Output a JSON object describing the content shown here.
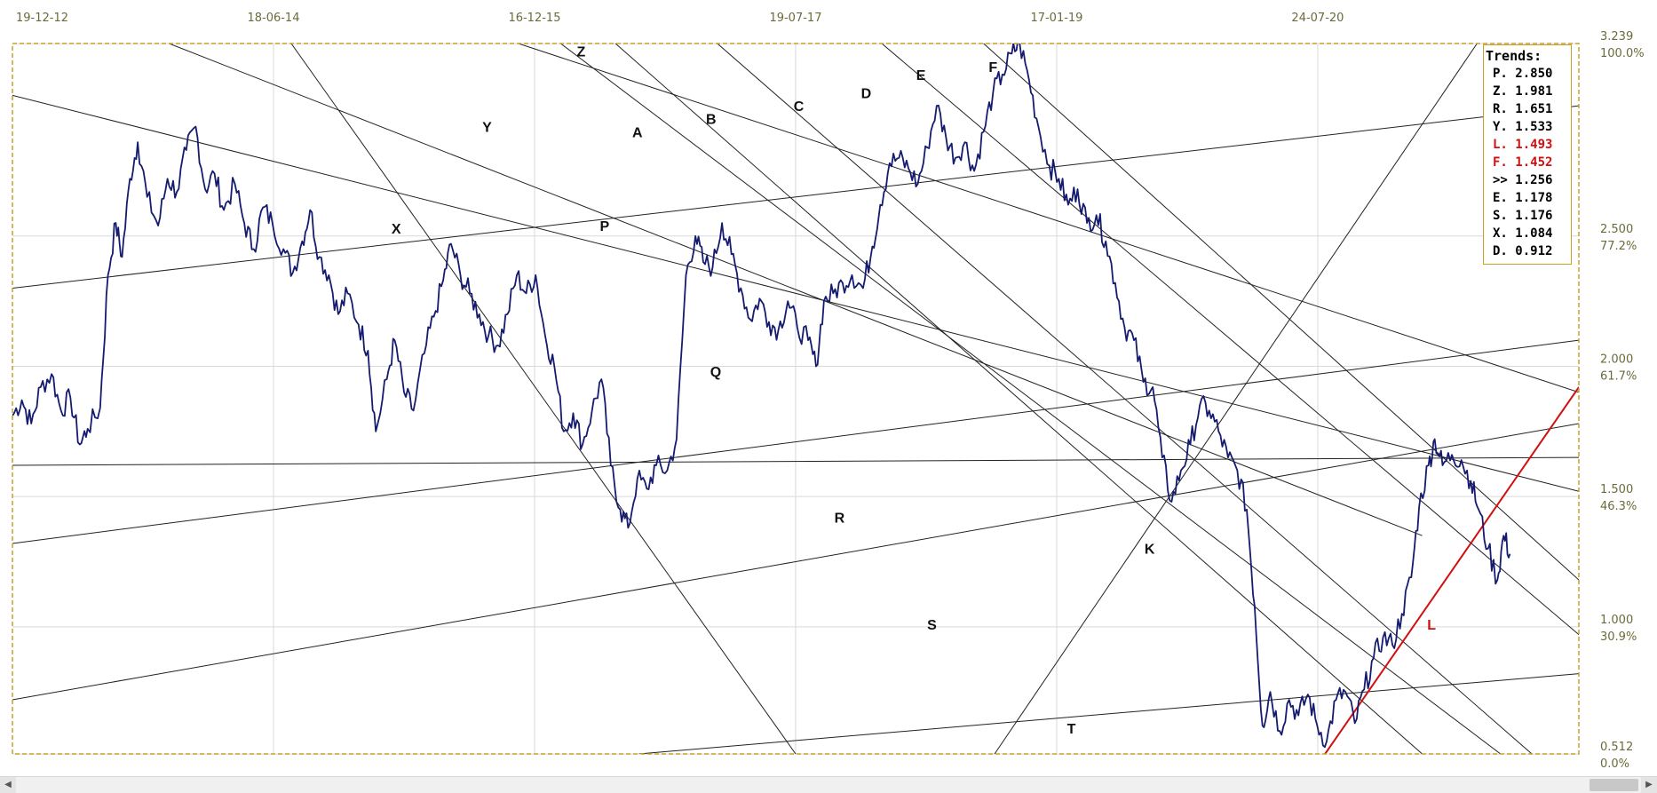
{
  "chart_data": {
    "type": "line",
    "x_ticks": [
      "19-12-12",
      "18-06-14",
      "16-12-15",
      "19-07-17",
      "17-01-19",
      "24-07-20"
    ],
    "y_ticks": [
      {
        "value": 3.239,
        "label": "3.239",
        "pct": "100.0%"
      },
      {
        "value": 2.5,
        "label": "2.500",
        "pct": "77.2%"
      },
      {
        "value": 2.0,
        "label": "2.000",
        "pct": "61.7%"
      },
      {
        "value": 1.5,
        "label": "1.500",
        "pct": "46.3%"
      },
      {
        "value": 1.0,
        "label": "1.000",
        "pct": "30.9%"
      },
      {
        "value": 0.512,
        "label": "0.512",
        "pct": "0.0%"
      }
    ],
    "ylim": [
      0.512,
      3.239
    ],
    "xlim": [
      0,
      100
    ],
    "grid": true,
    "series": [
      {
        "values": [
          [
            0.0,
            1.81
          ],
          [
            0.6,
            1.87
          ],
          [
            1.2,
            1.78
          ],
          [
            1.8,
            1.92
          ],
          [
            2.5,
            1.97
          ],
          [
            3.1,
            1.83
          ],
          [
            3.7,
            1.88
          ],
          [
            4.3,
            1.7
          ],
          [
            4.8,
            1.76
          ],
          [
            5.6,
            1.84
          ],
          [
            6.1,
            2.35
          ],
          [
            6.6,
            2.55
          ],
          [
            7.0,
            2.42
          ],
          [
            7.5,
            2.72
          ],
          [
            8.0,
            2.86
          ],
          [
            8.6,
            2.65
          ],
          [
            9.3,
            2.54
          ],
          [
            9.9,
            2.72
          ],
          [
            10.5,
            2.67
          ],
          [
            11.1,
            2.83
          ],
          [
            11.7,
            2.92
          ],
          [
            12.3,
            2.68
          ],
          [
            12.9,
            2.74
          ],
          [
            13.5,
            2.6
          ],
          [
            14.2,
            2.7
          ],
          [
            14.8,
            2.55
          ],
          [
            15.4,
            2.45
          ],
          [
            16.0,
            2.61
          ],
          [
            16.6,
            2.55
          ],
          [
            17.3,
            2.45
          ],
          [
            17.9,
            2.36
          ],
          [
            18.5,
            2.48
          ],
          [
            19.0,
            2.6
          ],
          [
            19.6,
            2.42
          ],
          [
            20.2,
            2.35
          ],
          [
            20.8,
            2.2
          ],
          [
            21.4,
            2.28
          ],
          [
            22.1,
            2.16
          ],
          [
            22.7,
            2.06
          ],
          [
            23.2,
            1.75
          ],
          [
            23.9,
            1.95
          ],
          [
            24.4,
            2.1
          ],
          [
            25.0,
            1.9
          ],
          [
            25.6,
            1.83
          ],
          [
            26.3,
            2.05
          ],
          [
            26.9,
            2.19
          ],
          [
            27.5,
            2.33
          ],
          [
            28.0,
            2.47
          ],
          [
            28.6,
            2.35
          ],
          [
            29.2,
            2.28
          ],
          [
            29.8,
            2.2
          ],
          [
            30.4,
            2.12
          ],
          [
            31.0,
            2.08
          ],
          [
            31.6,
            2.2
          ],
          [
            32.2,
            2.35
          ],
          [
            32.8,
            2.28
          ],
          [
            33.4,
            2.35
          ],
          [
            34.0,
            2.12
          ],
          [
            34.6,
            2.0
          ],
          [
            35.2,
            1.75
          ],
          [
            35.8,
            1.82
          ],
          [
            36.4,
            1.7
          ],
          [
            37.0,
            1.83
          ],
          [
            37.6,
            1.95
          ],
          [
            38.2,
            1.62
          ],
          [
            38.8,
            1.45
          ],
          [
            39.3,
            1.38
          ],
          [
            39.9,
            1.57
          ],
          [
            40.5,
            1.53
          ],
          [
            41.1,
            1.62
          ],
          [
            41.8,
            1.6
          ],
          [
            42.4,
            1.72
          ],
          [
            43.0,
            2.35
          ],
          [
            43.6,
            2.5
          ],
          [
            44.1,
            2.4
          ],
          [
            44.7,
            2.38
          ],
          [
            45.3,
            2.55
          ],
          [
            45.9,
            2.43
          ],
          [
            46.5,
            2.3
          ],
          [
            47.1,
            2.18
          ],
          [
            47.7,
            2.26
          ],
          [
            48.3,
            2.17
          ],
          [
            48.9,
            2.14
          ],
          [
            49.5,
            2.25
          ],
          [
            50.1,
            2.15
          ],
          [
            50.8,
            2.1
          ],
          [
            51.3,
            2.0
          ],
          [
            51.8,
            2.25
          ],
          [
            52.4,
            2.28
          ],
          [
            53.0,
            2.32
          ],
          [
            53.6,
            2.35
          ],
          [
            54.3,
            2.3
          ],
          [
            54.9,
            2.46
          ],
          [
            55.4,
            2.62
          ],
          [
            56.0,
            2.78
          ],
          [
            56.6,
            2.8
          ],
          [
            57.2,
            2.76
          ],
          [
            57.8,
            2.7
          ],
          [
            58.4,
            2.84
          ],
          [
            59.0,
            3.0
          ],
          [
            59.6,
            2.88
          ],
          [
            60.2,
            2.8
          ],
          [
            60.8,
            2.86
          ],
          [
            61.4,
            2.75
          ],
          [
            62.0,
            2.9
          ],
          [
            62.6,
            3.05
          ],
          [
            63.2,
            3.12
          ],
          [
            63.8,
            3.2
          ],
          [
            64.3,
            3.24
          ],
          [
            64.9,
            3.1
          ],
          [
            65.5,
            2.92
          ],
          [
            66.2,
            2.77
          ],
          [
            66.8,
            2.72
          ],
          [
            67.4,
            2.62
          ],
          [
            68.0,
            2.68
          ],
          [
            68.6,
            2.55
          ],
          [
            69.2,
            2.58
          ],
          [
            69.8,
            2.48
          ],
          [
            70.4,
            2.32
          ],
          [
            71.0,
            2.15
          ],
          [
            71.6,
            2.1
          ],
          [
            72.2,
            1.94
          ],
          [
            72.8,
            1.92
          ],
          [
            73.4,
            1.65
          ],
          [
            74.0,
            1.48
          ],
          [
            74.6,
            1.6
          ],
          [
            75.2,
            1.7
          ],
          [
            75.8,
            1.85
          ],
          [
            76.4,
            1.83
          ],
          [
            77.0,
            1.75
          ],
          [
            77.6,
            1.65
          ],
          [
            78.2,
            1.6
          ],
          [
            78.8,
            1.45
          ],
          [
            79.3,
            1.08
          ],
          [
            79.8,
            0.62
          ],
          [
            80.3,
            0.75
          ],
          [
            80.9,
            0.6
          ],
          [
            81.5,
            0.72
          ],
          [
            82.1,
            0.66
          ],
          [
            82.7,
            0.74
          ],
          [
            83.3,
            0.62
          ],
          [
            83.9,
            0.56
          ],
          [
            84.5,
            0.72
          ],
          [
            85.1,
            0.75
          ],
          [
            85.7,
            0.63
          ],
          [
            86.3,
            0.76
          ],
          [
            86.9,
            0.88
          ],
          [
            87.5,
            0.96
          ],
          [
            88.1,
            0.93
          ],
          [
            88.7,
            1.05
          ],
          [
            89.3,
            1.19
          ],
          [
            89.8,
            1.46
          ],
          [
            90.4,
            1.62
          ],
          [
            90.8,
            1.72
          ],
          [
            91.3,
            1.62
          ],
          [
            91.9,
            1.66
          ],
          [
            92.5,
            1.64
          ],
          [
            93.1,
            1.56
          ],
          [
            93.6,
            1.45
          ],
          [
            94.2,
            1.3
          ],
          [
            94.8,
            1.18
          ],
          [
            95.2,
            1.35
          ],
          [
            95.6,
            1.28
          ]
        ]
      }
    ],
    "trend_lines": [
      {
        "name": "Z",
        "from": [
          32.3,
          3.239
        ],
        "to": [
          100.0,
          1.9
        ]
      },
      {
        "name": "Y",
        "from": [
          0.0,
          3.04
        ],
        "to": [
          100.0,
          1.52
        ]
      },
      {
        "name": "X",
        "from": [
          0.0,
          2.3
        ],
        "to": [
          100.0,
          3.0
        ]
      },
      {
        "name": "P",
        "from": [
          10.0,
          3.239
        ],
        "to": [
          90.0,
          1.35
        ]
      },
      {
        "name": "Q",
        "from": [
          0.0,
          1.32
        ],
        "to": [
          100.0,
          2.1
        ]
      },
      {
        "name": "R",
        "from": [
          0.0,
          1.62
        ],
        "to": [
          100.0,
          1.65
        ]
      },
      {
        "name": "S",
        "from": [
          0.0,
          0.72
        ],
        "to": [
          100.0,
          1.78
        ]
      },
      {
        "name": "T",
        "from": [
          40.0,
          0.512
        ],
        "to": [
          100.0,
          0.82
        ]
      },
      {
        "name": "A",
        "from": [
          17.8,
          3.239
        ],
        "to": [
          50.0,
          0.512
        ]
      },
      {
        "name": "B",
        "from": [
          35.0,
          3.239
        ],
        "to": [
          95.0,
          0.512
        ]
      },
      {
        "name": "C",
        "from": [
          38.5,
          3.239
        ],
        "to": [
          90.0,
          0.512
        ]
      },
      {
        "name": "D",
        "from": [
          45.0,
          3.239
        ],
        "to": [
          97.0,
          0.512
        ]
      },
      {
        "name": "E",
        "from": [
          55.5,
          3.239
        ],
        "to": [
          100.0,
          0.97
        ]
      },
      {
        "name": "F",
        "from": [
          62.0,
          3.239
        ],
        "to": [
          100.0,
          1.18
        ]
      },
      {
        "name": "K",
        "from": [
          62.7,
          0.512
        ],
        "to": [
          93.5,
          3.239
        ]
      },
      {
        "name": "L",
        "from": [
          83.8,
          0.512
        ],
        "to": [
          100.0,
          1.92
        ],
        "color": "#d01010"
      }
    ],
    "trend_labels": [
      {
        "text": "Z",
        "x": 36.3,
        "y": 3.19
      },
      {
        "text": "Y",
        "x": 30.3,
        "y": 2.9
      },
      {
        "text": "X",
        "x": 24.5,
        "y": 2.51
      },
      {
        "text": "P",
        "x": 37.8,
        "y": 2.52
      },
      {
        "text": "A",
        "x": 39.9,
        "y": 2.88
      },
      {
        "text": "B",
        "x": 44.6,
        "y": 2.93
      },
      {
        "text": "C",
        "x": 50.2,
        "y": 2.98
      },
      {
        "text": "D",
        "x": 54.5,
        "y": 3.03
      },
      {
        "text": "E",
        "x": 58.0,
        "y": 3.1
      },
      {
        "text": "F",
        "x": 62.6,
        "y": 3.13
      },
      {
        "text": "Q",
        "x": 44.9,
        "y": 1.96
      },
      {
        "text": "R",
        "x": 52.8,
        "y": 1.4
      },
      {
        "text": "K",
        "x": 72.6,
        "y": 1.28
      },
      {
        "text": "S",
        "x": 58.7,
        "y": 0.99
      },
      {
        "text": "T",
        "x": 67.6,
        "y": 0.59
      },
      {
        "text": "L",
        "x": 90.6,
        "y": 0.99,
        "color": "#d01010"
      }
    ]
  },
  "legend": {
    "title": "Trends:",
    "items": [
      {
        "key": "P.",
        "value": "2.850",
        "color": "#000000"
      },
      {
        "key": "Z.",
        "value": "1.981",
        "color": "#000000"
      },
      {
        "key": "R.",
        "value": "1.651",
        "color": "#000000"
      },
      {
        "key": "Y.",
        "value": "1.533",
        "color": "#000000"
      },
      {
        "key": "L.",
        "value": "1.493",
        "color": "#d01010"
      },
      {
        "key": "F.",
        "value": "1.452",
        "color": "#d01010"
      },
      {
        "key": ">>",
        "value": "1.256",
        "color": "#000000"
      },
      {
        "key": "E.",
        "value": "1.178",
        "color": "#000000"
      },
      {
        "key": "S.",
        "value": "1.176",
        "color": "#000000"
      },
      {
        "key": "X.",
        "value": "1.084",
        "color": "#000000"
      },
      {
        "key": "D.",
        "value": "0.912",
        "color": "#000000"
      }
    ]
  },
  "colors": {
    "price_line": "#151b6e",
    "trend_line": "#222222",
    "highlight": "#d01010",
    "frame": "#c8a028",
    "grid": "#d9d9d9"
  },
  "icons": {
    "scroll_left": "left-arrow-icon",
    "scroll_right": "right-arrow-icon"
  }
}
